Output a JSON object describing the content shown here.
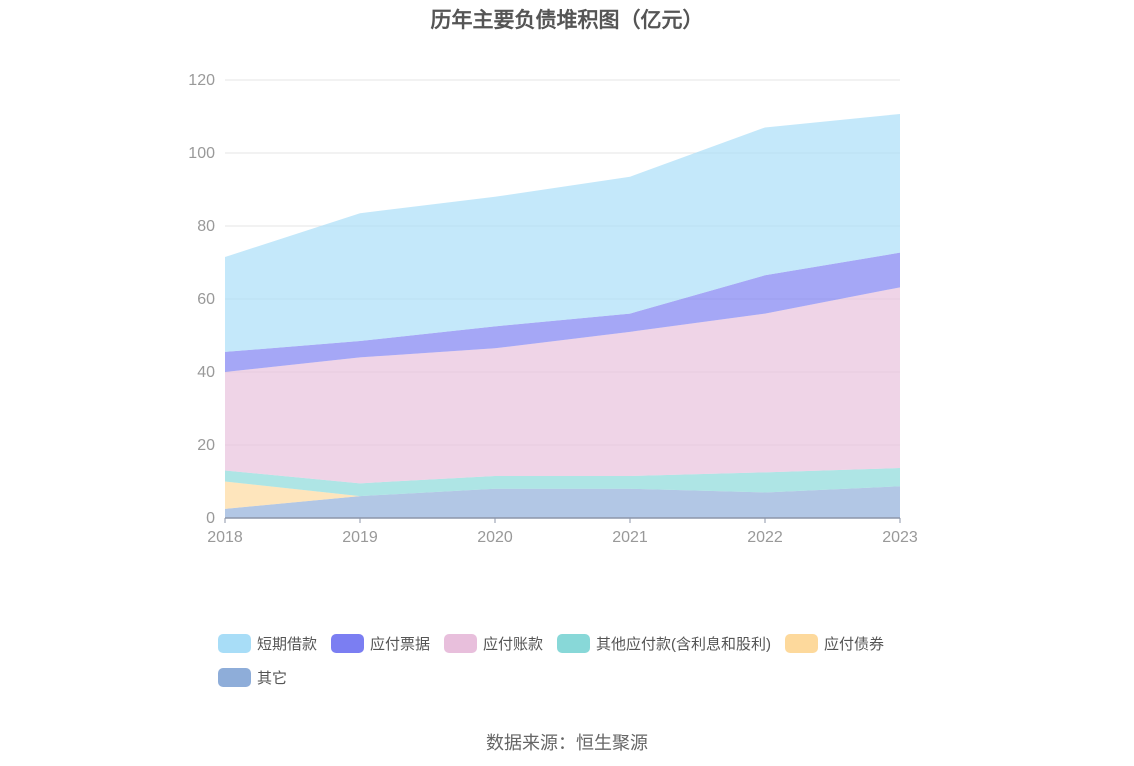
{
  "chart_data": {
    "type": "area",
    "title": "历年主要负债堆积图（亿元）",
    "x": [
      "2018",
      "2019",
      "2020",
      "2021",
      "2022",
      "2023"
    ],
    "ylim": [
      0,
      120
    ],
    "yticks": [
      "0",
      "20",
      "40",
      "60",
      "80",
      "100",
      "120"
    ],
    "stacked": true,
    "grid": true,
    "legend_position": "bottom",
    "series": [
      {
        "name": "其它",
        "color": "#8eadd9",
        "values": [
          2.5,
          6,
          8,
          8,
          7,
          8.7
        ]
      },
      {
        "name": "应付债券",
        "color": "#fdd99c",
        "values": [
          7.5,
          0,
          0,
          0,
          0,
          0
        ]
      },
      {
        "name": "其他应付款(含利息和股利)",
        "color": "#88d8d8",
        "values": [
          3,
          3.5,
          3.5,
          3.5,
          5.5,
          5
        ]
      },
      {
        "name": "应付账款",
        "color": "#e8bfdc",
        "values": [
          27,
          34.5,
          35,
          39.5,
          43.5,
          49.5
        ]
      },
      {
        "name": "应付票据",
        "color": "#7b7ef2",
        "values": [
          5.5,
          4.5,
          6,
          5,
          10.5,
          9.5
        ]
      },
      {
        "name": "短期借款",
        "color": "#a8ddf7",
        "values": [
          26,
          35,
          35.5,
          37.5,
          40.5,
          38
        ]
      }
    ]
  },
  "legend_order": [
    "短期借款",
    "应付票据",
    "应付账款",
    "其他应付款(含利息和股利)",
    "应付债券",
    "其它"
  ],
  "source_text": "数据来源：恒生聚源"
}
